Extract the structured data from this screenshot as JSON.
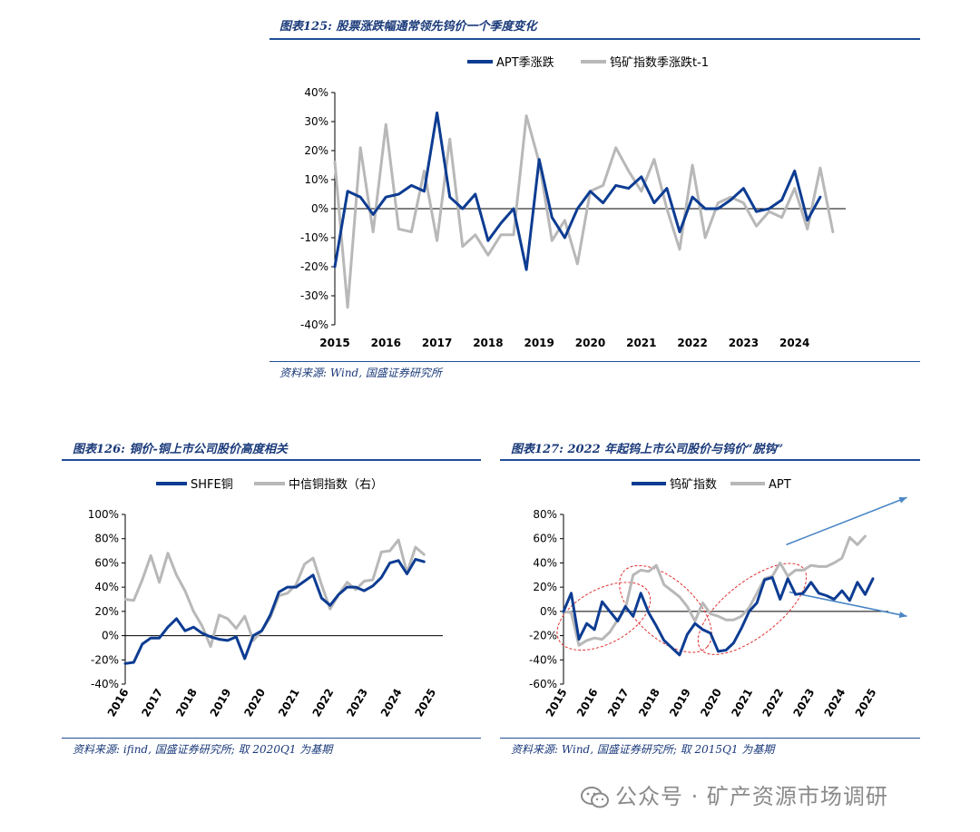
{
  "colors": {
    "navy": "#0d3c92",
    "gray": "#b8b8b8",
    "rule": "#1f4e96",
    "title": "#1a3a7a",
    "arrow": "#4a86c5",
    "ellipse": "#e03030"
  },
  "fig125": {
    "title": "图表125:  股票涨跌幅通常领先钨价一个季度变化",
    "source": "资料来源:  Wind,  国盛证券研究所"
  },
  "fig126": {
    "title": "图表126:  铜价-铜上市公司股价高度相关",
    "source": "资料来源:  ifind,  国盛证券研究所;  取 2020Q1 为基期"
  },
  "fig127": {
    "title": "图表127:  2022 年起钨上市公司股价与钨价“脱钩”",
    "source": "资料来源:  Wind,  国盛证券研究所;  取 2015Q1 为基期"
  },
  "watermark": {
    "text": "公众号 · 矿产资源市场调研"
  },
  "chart_data": [
    {
      "id": "fig125",
      "type": "line",
      "title": "图表125:  股票涨跌幅通常领先钨价一个季度变化",
      "ylim": [
        -40,
        40
      ],
      "yticks": [
        -40,
        -30,
        -20,
        -10,
        0,
        10,
        20,
        30,
        40
      ],
      "ytick_labels": [
        "-40%",
        "-30%",
        "-20%",
        "-10%",
        "0%",
        "10%",
        "20%",
        "30%",
        "40%"
      ],
      "xlim": [
        2015,
        2025
      ],
      "xticks": [
        2015,
        2016,
        2017,
        2018,
        2019,
        2020,
        2021,
        2022,
        2023,
        2024
      ],
      "xtick_labels": [
        "2015",
        "2016",
        "2017",
        "2018",
        "2019",
        "2020",
        "2021",
        "2022",
        "2023",
        "2024"
      ],
      "x_start": 2015.0,
      "x_step": 0.25,
      "legend": "top",
      "series": [
        {
          "name": "APT季涨跌",
          "color": "#0d3c92",
          "values": [
            -20,
            6,
            4,
            -2,
            4,
            5,
            8,
            6,
            33,
            4,
            0,
            5,
            -11,
            -5,
            0,
            -21,
            17,
            -3,
            -10,
            0,
            6,
            2,
            8,
            7,
            11,
            2,
            7,
            -8,
            4,
            0,
            0,
            3,
            7,
            -1,
            0,
            3,
            13,
            -4,
            4
          ]
        },
        {
          "name": "钨矿指数季涨跌t-1",
          "color": "#b8b8b8",
          "values": [
            16,
            -34,
            21,
            -8,
            29,
            -7,
            -8,
            13,
            -11,
            24,
            -13,
            -9,
            -16,
            -9,
            -9,
            32,
            16,
            -11,
            -4,
            -19,
            6,
            8,
            21,
            13,
            6,
            17,
            0,
            -14,
            15,
            -10,
            2,
            4,
            2,
            -6,
            -1,
            -3,
            7,
            -7,
            14,
            -8
          ]
        }
      ]
    },
    {
      "id": "fig126",
      "type": "line",
      "title": "图表126:  铜价-铜上市公司股价高度相关",
      "ylim": [
        -40,
        100
      ],
      "yticks": [
        -40,
        -20,
        0,
        20,
        40,
        60,
        80,
        100
      ],
      "ytick_labels": [
        "-40%",
        "-20%",
        "0%",
        "20%",
        "40%",
        "60%",
        "80%",
        "100%"
      ],
      "xlim": [
        2016,
        2025.3
      ],
      "xticks": [
        2016,
        2017,
        2018,
        2019,
        2020,
        2021,
        2022,
        2023,
        2024,
        2025
      ],
      "xtick_labels": [
        "2016",
        "2017",
        "2018",
        "2019",
        "2020",
        "2021",
        "2022",
        "2023",
        "2024",
        "2025"
      ],
      "x_start": 2016.0,
      "x_step": 0.25,
      "legend": "top",
      "series": [
        {
          "name": "SHFE铜",
          "color": "#0d3c92",
          "values": [
            -23,
            -22,
            -7,
            -2,
            -2,
            7,
            14,
            4,
            7,
            2,
            -1,
            -3,
            -4,
            -1,
            -19,
            0,
            4,
            17,
            36,
            40,
            40,
            45,
            50,
            31,
            25,
            34,
            40,
            40,
            37,
            41,
            48,
            60,
            62,
            51,
            63,
            61
          ]
        },
        {
          "name": "中信铜指数（右）",
          "color": "#b8b8b8",
          "values": [
            30,
            29,
            46,
            66,
            44,
            68,
            50,
            37,
            20,
            8,
            -9,
            17,
            14,
            6,
            16,
            -4,
            4,
            15,
            33,
            35,
            42,
            59,
            64,
            42,
            22,
            34,
            44,
            38,
            45,
            46,
            69,
            70,
            79,
            52,
            73,
            67
          ]
        }
      ]
    },
    {
      "id": "fig127",
      "type": "line",
      "title": "图表127:  2022 年起钨上市公司股价与钨价“脱钩”",
      "ylim": [
        -60,
        80
      ],
      "yticks": [
        -60,
        -40,
        -20,
        0,
        20,
        40,
        60,
        80
      ],
      "ytick_labels": [
        "-60%",
        "-40%",
        "-20%",
        "0%",
        "20%",
        "40%",
        "60%",
        "80%"
      ],
      "xlim": [
        2015,
        2025.5
      ],
      "xticks": [
        2015,
        2016,
        2017,
        2018,
        2019,
        2020,
        2021,
        2022,
        2023,
        2024,
        2025
      ],
      "xtick_labels": [
        "2015",
        "2016",
        "2017",
        "2018",
        "2019",
        "2020",
        "2021",
        "2022",
        "2023",
        "2024",
        "2025"
      ],
      "x_start": 2015.0,
      "x_step": 0.25,
      "legend": "top",
      "annotations": [
        "three dashed ellipses marking co-movement periods",
        "two arrows showing divergence from 2022"
      ],
      "series": [
        {
          "name": "钨矿指数",
          "color": "#0d3c92",
          "values": [
            0,
            15,
            -23,
            -10,
            -15,
            8,
            0,
            -8,
            4,
            -4,
            15,
            -1,
            -12,
            -24,
            -30,
            -36,
            -19,
            -10,
            -15,
            -18,
            -33,
            -32,
            -26,
            -14,
            0,
            7,
            26,
            28,
            10,
            27,
            14,
            15,
            24,
            15,
            13,
            10,
            17,
            9,
            24,
            14,
            27
          ]
        },
        {
          "name": "APT",
          "color": "#b8b8b8",
          "values": [
            0,
            -1,
            -28,
            -24,
            -22,
            -23,
            -17,
            -7,
            2,
            30,
            34,
            33,
            38,
            22,
            17,
            12,
            4,
            -8,
            7,
            -2,
            -4,
            -7,
            -7,
            -4,
            3,
            15,
            27,
            29,
            40,
            29,
            34,
            34,
            38,
            37,
            37,
            40,
            44,
            61,
            55,
            62
          ]
        }
      ]
    }
  ]
}
